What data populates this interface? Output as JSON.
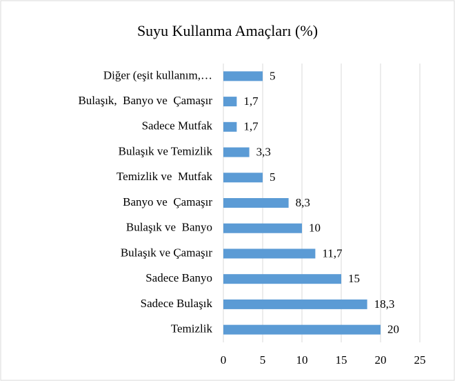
{
  "chart_data": {
    "type": "bar",
    "orientation": "horizontal",
    "title": "Suyu Kullanma Amaçları (%)",
    "categories": [
      "Diğer (eşit kullanım,…",
      "Bulaşık,  Banyo ve  Çamaşır",
      "Sadece Mutfak",
      "Bulaşık ve Temizlik",
      "Temizlik ve  Mutfak",
      "Banyo ve  Çamaşır",
      "Bulaşık ve  Banyo",
      "Bulaşık ve Çamaşır",
      "Sadece Banyo",
      "Sadece Bulaşık",
      "Temizlik"
    ],
    "values": [
      5,
      1.7,
      1.7,
      3.3,
      5,
      8.3,
      10,
      11.7,
      15,
      18.3,
      20
    ],
    "value_labels": [
      "5",
      "1,7",
      "1,7",
      "3,3",
      "5",
      "8,3",
      "10",
      "11,7",
      "15",
      "18,3",
      "20"
    ],
    "color": "#5b9bd5",
    "xlim": [
      0,
      25
    ],
    "xticks": [
      0,
      5,
      10,
      15,
      20,
      25
    ],
    "grid": true
  }
}
